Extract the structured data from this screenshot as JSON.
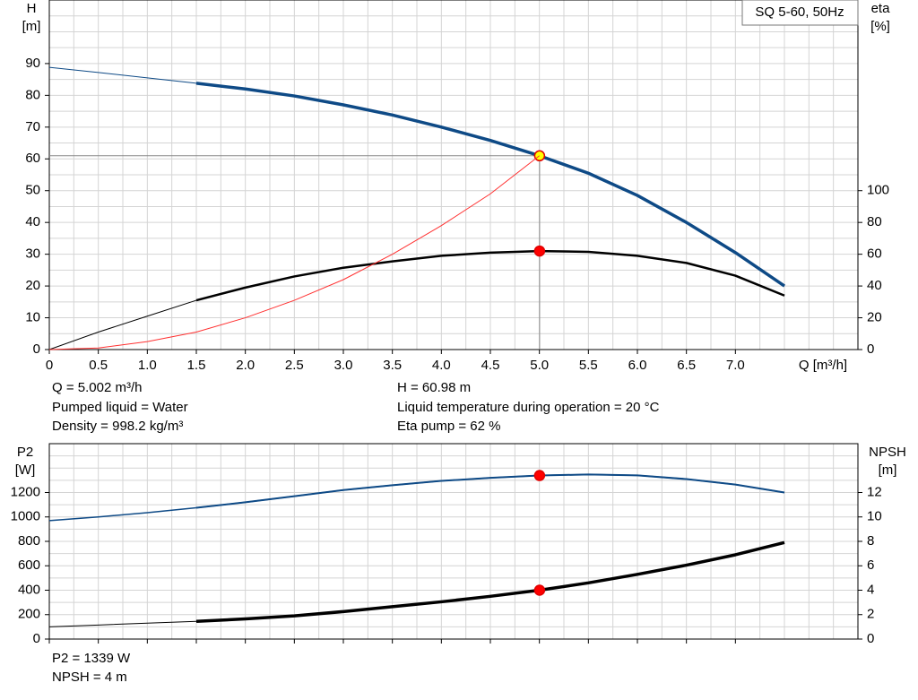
{
  "chart_data": [
    {
      "type": "line",
      "title": "SQ 5-60, 50Hz",
      "ylabel": "H",
      "yunit": "[m]",
      "y2label": "eta",
      "y2unit": "[%]",
      "xlabel": "Q [m³/h]",
      "xlim": [
        0,
        8.25
      ],
      "ylim": [
        0,
        110
      ],
      "y2lim": [
        0,
        220
      ],
      "xticks": [
        0,
        0.5,
        {
          "value": 1,
          "label": "1.0"
        },
        1.5,
        {
          "value": 2,
          "label": "2.0"
        },
        2.5,
        {
          "value": 3,
          "label": "3.0"
        },
        3.5,
        {
          "value": 4,
          "label": "4.0"
        },
        4.5,
        {
          "value": 5,
          "label": "5.0"
        },
        5.5,
        {
          "value": 6,
          "label": "6.0"
        },
        6.5,
        {
          "value": 7,
          "label": "7.0"
        }
      ],
      "yticks": [
        0,
        10,
        20,
        30,
        40,
        50,
        60,
        70,
        80,
        90
      ],
      "y2ticks": [
        0,
        20,
        40,
        60,
        80,
        100
      ],
      "grid": true,
      "xgrid_step": 0.25,
      "ygrid_step": 5,
      "guide_lines": true,
      "x": [
        0,
        0.5,
        1,
        1.5,
        2,
        2.5,
        3,
        3.5,
        4,
        4.5,
        5,
        5.5,
        6,
        6.5,
        7,
        7.5
      ],
      "series": [
        {
          "color": "#0e4a86",
          "width": [
            1,
            3.5
          ],
          "bold_from": 1.5,
          "values": [
            88.8,
            87.2,
            85.5,
            83.8,
            82.0,
            79.8,
            77.0,
            73.8,
            70.0,
            65.8,
            61.0,
            55.5,
            48.5,
            40.0,
            30.5,
            20.0
          ],
          "marker": {
            "x": 5.002,
            "y": 60.98,
            "color": "#ffff00"
          }
        },
        {
          "color": "#000000",
          "width": [
            1,
            2.5
          ],
          "bold_from": 1.5,
          "axis": "y2",
          "values": [
            0,
            11,
            21,
            31,
            39,
            46,
            51.5,
            55.5,
            59,
            61,
            62,
            61.5,
            59,
            54.5,
            46.5,
            34
          ],
          "marker": {
            "x": 5.002,
            "y": 62,
            "color": "#ff0000"
          }
        },
        {
          "color": "#ff3030",
          "width": [
            1,
            1
          ],
          "bold_from": 0,
          "values": [
            0,
            0.5,
            2.5,
            5.5,
            10,
            15.5,
            22,
            30,
            39,
            49,
            61,
            null,
            null,
            null,
            null,
            null
          ]
        }
      ],
      "annotations": [
        "Q = 5.002 m³/h",
        "Pumped liquid = Water",
        "Density = 998.2 kg/m³",
        "H = 60.98 m",
        "Liquid temperature during operation = 20 °C",
        "Eta pump = 62 %"
      ]
    },
    {
      "type": "line",
      "ylabel": "P2",
      "yunit": "[W]",
      "y2label": "NPSH",
      "y2unit": "[m]",
      "xlim": [
        0,
        8.25
      ],
      "ylim": [
        0,
        1600
      ],
      "y2lim": [
        0,
        16
      ],
      "xticks": [
        0,
        0.5,
        1,
        1.5,
        2,
        2.5,
        3,
        3.5,
        4,
        4.5,
        5,
        5.5,
        6,
        6.5,
        7
      ],
      "yticks": [
        0,
        200,
        400,
        600,
        800,
        1000,
        1200
      ],
      "y2ticks": [
        0,
        2,
        4,
        6,
        8,
        10,
        12
      ],
      "grid": true,
      "xgrid_step": 0.25,
      "ygrid_step": 100,
      "x": [
        0,
        0.5,
        1,
        1.5,
        2,
        2.5,
        3,
        3.5,
        4,
        4.5,
        5,
        5.5,
        6,
        6.5,
        7,
        7.5
      ],
      "series": [
        {
          "color": "#0e4a86",
          "width": [
            1.5,
            2
          ],
          "bold_from": 1.5,
          "values": [
            970,
            1000,
            1035,
            1075,
            1120,
            1170,
            1220,
            1260,
            1295,
            1320,
            1339,
            1348,
            1340,
            1310,
            1265,
            1200
          ],
          "marker": {
            "x": 5.002,
            "y": 1339,
            "color": "#ff0000"
          }
        },
        {
          "color": "#000000",
          "width": [
            1,
            3.5
          ],
          "bold_from": 1.5,
          "axis": "y2",
          "values": [
            1.0,
            1.15,
            1.3,
            1.45,
            1.65,
            1.9,
            2.25,
            2.65,
            3.05,
            3.5,
            4.0,
            4.6,
            5.3,
            6.05,
            6.9,
            7.9
          ],
          "marker": {
            "x": 5.002,
            "y": 4,
            "color": "#ff0000"
          }
        }
      ],
      "annotations": [
        "P2 = 1339 W",
        "NPSH = 4 m"
      ]
    }
  ]
}
